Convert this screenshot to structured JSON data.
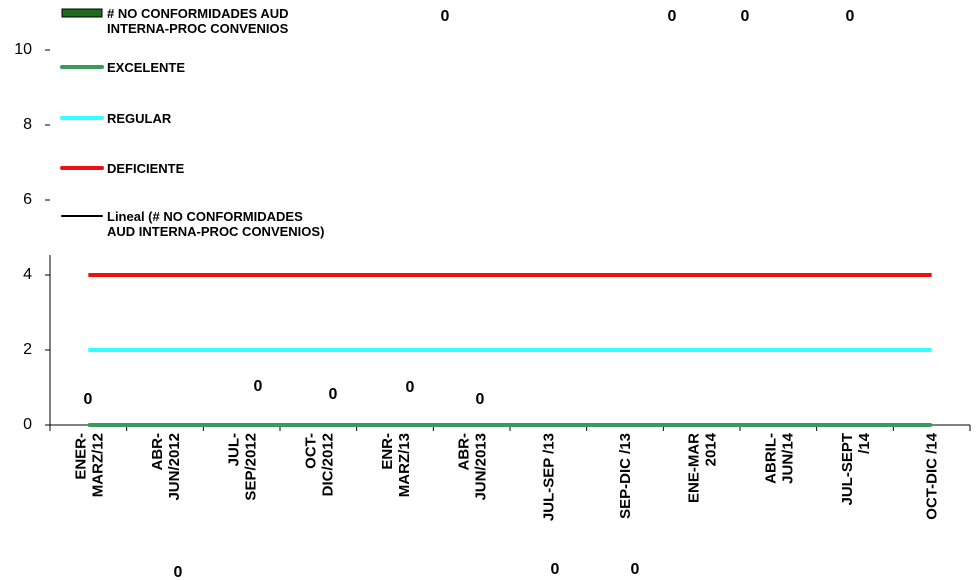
{
  "chart_data": {
    "type": "bar",
    "categories": [
      "ENER-MARZ/12",
      "ABR-JUN/2012",
      "JUL-SEP/2012",
      "OCT-DIC/2012",
      "ENR-MARZ/13",
      "ABR-JUN/2013",
      "JUL-SEP /13",
      "SEP-DIC /13",
      "ENE-MAR 2014",
      "ABRIL-JUN/14",
      "JUL-SEPT /14",
      "OCT-DIC /14"
    ],
    "series": [
      {
        "name": "# NO CONFORMIDADES AUD INTERNA-PROC CONVENIOS",
        "type": "bar",
        "color": "#1e6b1e",
        "values": [
          0,
          0,
          0,
          0,
          0,
          0,
          0,
          0,
          0,
          0,
          0,
          0
        ]
      },
      {
        "name": "EXCELENTE",
        "type": "line",
        "color": "#3a9a5c",
        "values": [
          0,
          0,
          0,
          0,
          0,
          0,
          0,
          0,
          0,
          0,
          0,
          0
        ]
      },
      {
        "name": "REGULAR",
        "type": "line",
        "color": "#33ffff",
        "values": [
          2,
          2,
          2,
          2,
          2,
          2,
          2,
          2,
          2,
          2,
          2,
          2
        ]
      },
      {
        "name": "DEFICIENTE",
        "type": "line",
        "color": "#ee1111",
        "values": [
          4,
          4,
          4,
          4,
          4,
          4,
          4,
          4,
          4,
          4,
          4,
          4
        ]
      },
      {
        "name": "Lineal (# NO CONFORMIDADES AUD INTERNA-PROC CONVENIOS)",
        "type": "line",
        "color": "#000000",
        "values": [
          0,
          0,
          0,
          0,
          0,
          0,
          0,
          0,
          0,
          0,
          0,
          0
        ]
      }
    ],
    "ylim": [
      0,
      10
    ],
    "yticks": [
      0,
      2,
      4,
      6,
      8,
      10
    ]
  }
}
